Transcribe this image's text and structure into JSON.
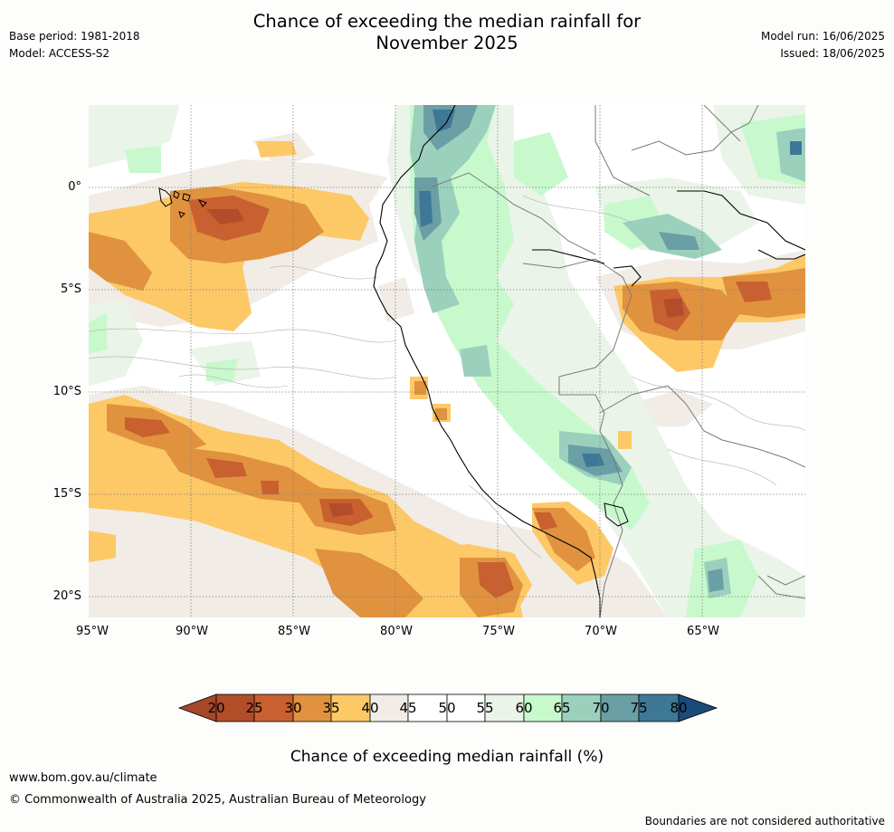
{
  "header": {
    "title_line1": "Chance of exceeding the median rainfall for",
    "title_line2": "November 2025",
    "base_period": "Base period: 1981-2018",
    "model": "Model: ACCESS-S2",
    "model_run": "Model run: 16/06/2025",
    "issued": "Issued: 18/06/2025"
  },
  "map": {
    "lat_labels": [
      "0°",
      "5°S",
      "10°S",
      "15°S",
      "20°S"
    ],
    "lon_labels": [
      "95°W",
      "90°W",
      "85°W",
      "80°W",
      "75°W",
      "70°W",
      "65°W"
    ]
  },
  "colorbar": {
    "labels": [
      "20",
      "25",
      "30",
      "35",
      "40",
      "45",
      "50",
      "55",
      "60",
      "65",
      "70",
      "75",
      "80"
    ],
    "colors": [
      "#a6472a",
      "#b24d2a",
      "#c9602f",
      "#e0923f",
      "#fdc866",
      "#f1ece6",
      "#ffffff",
      "#ffffff",
      "#eaf4e8",
      "#c7f9cc",
      "#9bd0bd",
      "#6a9fa5",
      "#3f7796",
      "#1a4a7a"
    ],
    "title": "Chance of exceeding median rainfall (%)"
  },
  "footer": {
    "website": "www.bom.gov.au/climate",
    "copyright": "© Commonwealth of Australia 2025, Australian Bureau of Meteorology",
    "disclaimer": "Boundaries are not considered authoritative"
  }
}
